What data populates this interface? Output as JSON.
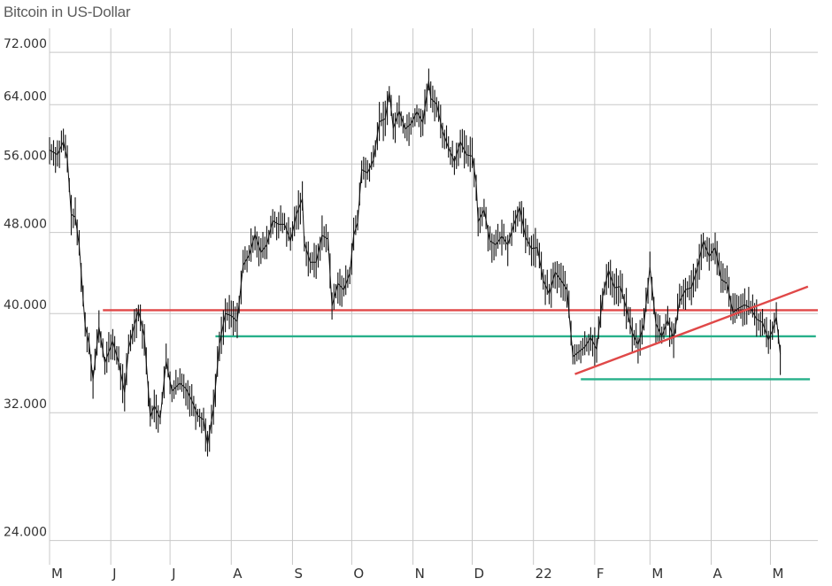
{
  "chart_data": {
    "type": "line",
    "title": "Bitcoin in US-Dollar",
    "xlabel": "",
    "ylabel": "",
    "y_scale": "log",
    "ylim": [
      23000,
      76000
    ],
    "x_range": [
      "2021-05-01",
      "2022-05-25"
    ],
    "grid": true,
    "y_ticks": [
      {
        "value": 72000,
        "label": "72.000"
      },
      {
        "value": 64000,
        "label": "64.000"
      },
      {
        "value": 56000,
        "label": "56.000"
      },
      {
        "value": 48000,
        "label": "48.000"
      },
      {
        "value": 40000,
        "label": "40.000"
      },
      {
        "value": 32000,
        "label": "32.000"
      },
      {
        "value": 24000,
        "label": "24.000"
      }
    ],
    "x_ticks": [
      {
        "date": "2021-05-01",
        "label": "M"
      },
      {
        "date": "2021-06-01",
        "label": "J"
      },
      {
        "date": "2021-07-01",
        "label": "J"
      },
      {
        "date": "2021-08-01",
        "label": "A"
      },
      {
        "date": "2021-09-01",
        "label": "S"
      },
      {
        "date": "2021-10-01",
        "label": "O"
      },
      {
        "date": "2021-11-01",
        "label": "N"
      },
      {
        "date": "2021-12-01",
        "label": "D"
      },
      {
        "date": "2022-01-01",
        "label": "22"
      },
      {
        "date": "2022-02-01",
        "label": "F"
      },
      {
        "date": "2022-03-01",
        "label": "M"
      },
      {
        "date": "2022-04-01",
        "label": "A"
      },
      {
        "date": "2022-05-01",
        "label": "M"
      }
    ],
    "series": [
      {
        "name": "",
        "color": "#111111",
        "points": [
          [
            "2021-05-01",
            57800
          ],
          [
            "2021-05-05",
            57200
          ],
          [
            "2021-05-08",
            58900
          ],
          [
            "2021-05-10",
            56600
          ],
          [
            "2021-05-12",
            50000
          ],
          [
            "2021-05-14",
            49700
          ],
          [
            "2021-05-16",
            46600
          ],
          [
            "2021-05-19",
            38900
          ],
          [
            "2021-05-21",
            37400
          ],
          [
            "2021-05-23",
            34500
          ],
          [
            "2021-05-26",
            38800
          ],
          [
            "2021-05-29",
            35800
          ],
          [
            "2021-06-02",
            37600
          ],
          [
            "2021-06-05",
            35800
          ],
          [
            "2021-06-08",
            33500
          ],
          [
            "2021-06-10",
            37000
          ],
          [
            "2021-06-13",
            39000
          ],
          [
            "2021-06-15",
            40300
          ],
          [
            "2021-06-18",
            38000
          ],
          [
            "2021-06-21",
            31700
          ],
          [
            "2021-06-23",
            32500
          ],
          [
            "2021-06-26",
            31600
          ],
          [
            "2021-06-29",
            35900
          ],
          [
            "2021-07-02",
            33600
          ],
          [
            "2021-07-06",
            34200
          ],
          [
            "2021-07-09",
            33800
          ],
          [
            "2021-07-12",
            32900
          ],
          [
            "2021-07-15",
            31800
          ],
          [
            "2021-07-18",
            31500
          ],
          [
            "2021-07-20",
            29800
          ],
          [
            "2021-07-23",
            32300
          ],
          [
            "2021-07-26",
            37300
          ],
          [
            "2021-07-29",
            40000
          ],
          [
            "2021-08-01",
            39800
          ],
          [
            "2021-08-04",
            39300
          ],
          [
            "2021-08-07",
            44600
          ],
          [
            "2021-08-10",
            45600
          ],
          [
            "2021-08-13",
            47800
          ],
          [
            "2021-08-16",
            45900
          ],
          [
            "2021-08-19",
            46700
          ],
          [
            "2021-08-22",
            49300
          ],
          [
            "2021-08-25",
            48900
          ],
          [
            "2021-08-28",
            48900
          ],
          [
            "2021-08-31",
            47100
          ],
          [
            "2021-09-03",
            50000
          ],
          [
            "2021-09-06",
            51800
          ],
          [
            "2021-09-07",
            46900
          ],
          [
            "2021-09-10",
            44900
          ],
          [
            "2021-09-13",
            44900
          ],
          [
            "2021-09-16",
            47700
          ],
          [
            "2021-09-19",
            47300
          ],
          [
            "2021-09-21",
            40700
          ],
          [
            "2021-09-24",
            42800
          ],
          [
            "2021-09-27",
            42200
          ],
          [
            "2021-09-30",
            43800
          ],
          [
            "2021-10-02",
            47700
          ],
          [
            "2021-10-04",
            49100
          ],
          [
            "2021-10-06",
            55300
          ],
          [
            "2021-10-09",
            54900
          ],
          [
            "2021-10-12",
            56500
          ],
          [
            "2021-10-15",
            61600
          ],
          [
            "2021-10-18",
            62000
          ],
          [
            "2021-10-20",
            65900
          ],
          [
            "2021-10-22",
            60700
          ],
          [
            "2021-10-25",
            63100
          ],
          [
            "2021-10-28",
            60600
          ],
          [
            "2021-10-31",
            61300
          ],
          [
            "2021-11-03",
            63000
          ],
          [
            "2021-11-06",
            61500
          ],
          [
            "2021-11-09",
            67500
          ],
          [
            "2021-11-10",
            64900
          ],
          [
            "2021-11-13",
            64100
          ],
          [
            "2021-11-16",
            60300
          ],
          [
            "2021-11-19",
            58100
          ],
          [
            "2021-11-22",
            56300
          ],
          [
            "2021-11-25",
            58900
          ],
          [
            "2021-11-28",
            57200
          ],
          [
            "2021-12-01",
            57000
          ],
          [
            "2021-12-03",
            53700
          ],
          [
            "2021-12-04",
            49200
          ],
          [
            "2021-12-07",
            50500
          ],
          [
            "2021-12-10",
            47100
          ],
          [
            "2021-12-13",
            46700
          ],
          [
            "2021-12-16",
            47600
          ],
          [
            "2021-12-19",
            46700
          ],
          [
            "2021-12-22",
            48800
          ],
          [
            "2021-12-25",
            50800
          ],
          [
            "2021-12-28",
            47500
          ],
          [
            "2021-12-31",
            46300
          ],
          [
            "2022-01-03",
            46400
          ],
          [
            "2022-01-06",
            43100
          ],
          [
            "2022-01-09",
            41800
          ],
          [
            "2022-01-12",
            43900
          ],
          [
            "2022-01-15",
            43100
          ],
          [
            "2022-01-18",
            42200
          ],
          [
            "2022-01-21",
            36300
          ],
          [
            "2022-01-24",
            36700
          ],
          [
            "2022-01-27",
            37100
          ],
          [
            "2022-01-30",
            37900
          ],
          [
            "2022-02-02",
            36900
          ],
          [
            "2022-02-05",
            41500
          ],
          [
            "2022-02-08",
            44100
          ],
          [
            "2022-02-11",
            42400
          ],
          [
            "2022-02-14",
            42500
          ],
          [
            "2022-02-17",
            40500
          ],
          [
            "2022-02-20",
            38300
          ],
          [
            "2022-02-23",
            37300
          ],
          [
            "2022-02-26",
            39100
          ],
          [
            "2022-03-01",
            44400
          ],
          [
            "2022-03-04",
            39100
          ],
          [
            "2022-03-07",
            38000
          ],
          [
            "2022-03-10",
            39400
          ],
          [
            "2022-03-13",
            37800
          ],
          [
            "2022-03-16",
            41100
          ],
          [
            "2022-03-19",
            42200
          ],
          [
            "2022-03-22",
            42400
          ],
          [
            "2022-03-25",
            44300
          ],
          [
            "2022-03-28",
            47100
          ],
          [
            "2022-03-31",
            45500
          ],
          [
            "2022-04-03",
            46400
          ],
          [
            "2022-04-06",
            43200
          ],
          [
            "2022-04-09",
            42800
          ],
          [
            "2022-04-12",
            40100
          ],
          [
            "2022-04-15",
            40500
          ],
          [
            "2022-04-18",
            40800
          ],
          [
            "2022-04-21",
            40500
          ],
          [
            "2022-04-24",
            39500
          ],
          [
            "2022-04-27",
            39200
          ],
          [
            "2022-04-30",
            37700
          ],
          [
            "2022-05-02",
            38500
          ],
          [
            "2022-05-04",
            39700
          ],
          [
            "2022-05-06",
            36500
          ]
        ]
      }
    ],
    "annotations": [
      {
        "kind": "horizontal",
        "color": "#e04848",
        "value": 40300,
        "from": "2021-05-28",
        "to": "2022-05-25"
      },
      {
        "kind": "horizontal",
        "color": "#27b08a",
        "value": 38000,
        "from": "2021-07-24",
        "to": "2022-05-24"
      },
      {
        "kind": "horizontal",
        "color": "#27b08a",
        "value": 34500,
        "from": "2022-01-25",
        "to": "2022-05-21"
      },
      {
        "kind": "trendline",
        "color": "#e04848",
        "from": [
          "2022-01-22",
          34900
        ],
        "to": [
          "2022-05-20",
          42500
        ]
      }
    ]
  }
}
